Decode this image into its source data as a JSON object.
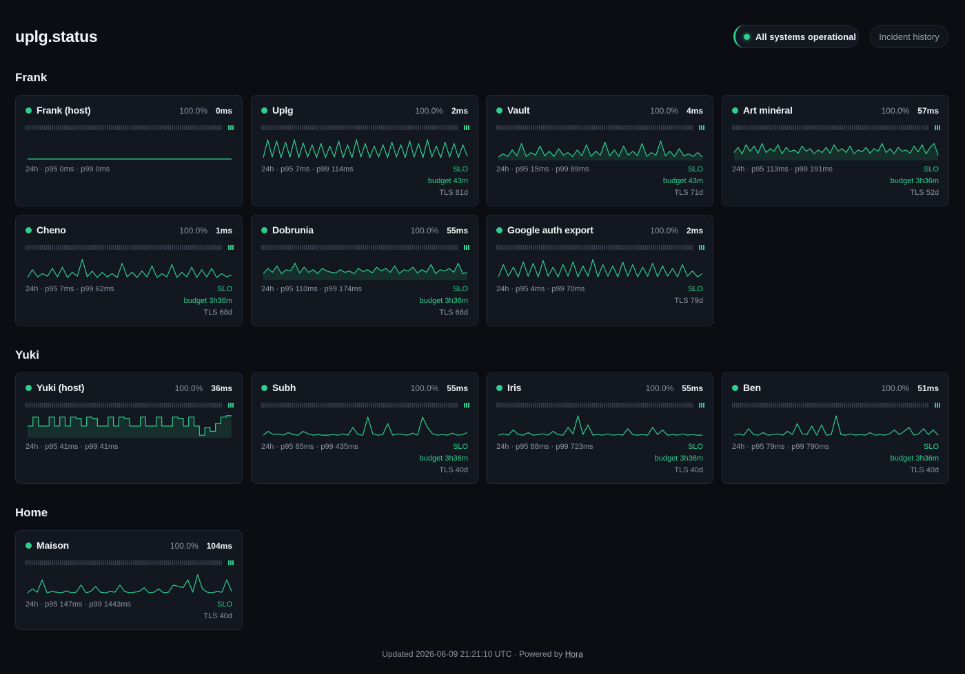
{
  "header": {
    "brand": "uplg.status",
    "status_label": "All systems operational",
    "history_label": "Incident history"
  },
  "colors": {
    "accent": "#2fcf8e",
    "background": "#0b0d12",
    "card": "#131720"
  },
  "sections": [
    {
      "title": "Frank",
      "monitors": [
        {
          "name": "Frank (host)",
          "uptime": "100.0%",
          "latency": "0ms",
          "stats": "24h · p95 0ms · p99 0ms",
          "slo": "",
          "budget": "",
          "tls": "",
          "series": [
            0,
            0,
            0,
            0,
            0,
            0,
            0,
            0,
            0,
            0,
            0,
            0,
            0,
            0,
            0,
            0,
            0,
            0,
            0,
            0,
            0,
            0,
            0,
            0,
            0,
            0,
            0,
            0,
            0,
            0,
            0,
            0,
            0,
            0,
            0,
            0,
            0,
            0,
            0,
            0
          ],
          "fill": false
        },
        {
          "name": "Uplg",
          "uptime": "100.0%",
          "latency": "2ms",
          "stats": "24h · p95 7ms · p99 114ms",
          "slo": "SLO",
          "budget": "budget 43m",
          "tls": "TLS 81d",
          "series": [
            2,
            30,
            3,
            28,
            2,
            26,
            3,
            30,
            2,
            25,
            3,
            22,
            2,
            24,
            2,
            20,
            3,
            28,
            2,
            22,
            2,
            30,
            3,
            24,
            2,
            20,
            3,
            22,
            2,
            26,
            3,
            22,
            2,
            28,
            3,
            24,
            2,
            30,
            3,
            20,
            2,
            26,
            3,
            24,
            2,
            22,
            4
          ],
          "fill": false
        },
        {
          "name": "Vault",
          "uptime": "100.0%",
          "latency": "4ms",
          "stats": "24h · p95 15ms · p99 89ms",
          "slo": "SLO",
          "budget": "budget 43m",
          "tls": "TLS 71d",
          "series": [
            3,
            8,
            4,
            14,
            5,
            24,
            4,
            10,
            6,
            20,
            5,
            12,
            4,
            16,
            6,
            10,
            4,
            14,
            5,
            22,
            4,
            12,
            6,
            26,
            5,
            14,
            4,
            20,
            6,
            12,
            5,
            24,
            4,
            10,
            6,
            28,
            5,
            12,
            4,
            16,
            5,
            8,
            4,
            10,
            3
          ],
          "fill": true
        },
        {
          "name": "Art minéral",
          "uptime": "100.0%",
          "latency": "57ms",
          "stats": "24h · p95 113ms · p99 191ms",
          "slo": "SLO",
          "budget": "budget 3h36m",
          "tls": "TLS 52d",
          "series": [
            10,
            18,
            8,
            22,
            12,
            20,
            9,
            24,
            10,
            16,
            12,
            22,
            8,
            18,
            11,
            14,
            9,
            20,
            12,
            16,
            8,
            14,
            10,
            18,
            9,
            22,
            12,
            16,
            10,
            20,
            8,
            14,
            11,
            18,
            9,
            16,
            12,
            24,
            10,
            16,
            8,
            18,
            12,
            14,
            9,
            20,
            11,
            22,
            8,
            18,
            24,
            6
          ],
          "fill": true
        }
      ]
    },
    {
      "title": "",
      "monitors": [
        {
          "name": "Cheno",
          "uptime": "100.0%",
          "latency": "1ms",
          "stats": "24h · p95 7ms · p99 62ms",
          "slo": "SLO",
          "budget": "budget 3h36m",
          "tls": "TLS 68d",
          "series": [
            2,
            14,
            3,
            8,
            4,
            16,
            3,
            18,
            2,
            10,
            4,
            30,
            3,
            12,
            2,
            10,
            3,
            8,
            2,
            24,
            3,
            10,
            2,
            12,
            3,
            20,
            2,
            8,
            3,
            22,
            2,
            10,
            3,
            18,
            2,
            14,
            3,
            16,
            2,
            8,
            3,
            6
          ],
          "fill": false
        },
        {
          "name": "Dobrunia",
          "uptime": "100.0%",
          "latency": "55ms",
          "stats": "24h · p95 110ms · p99 174ms",
          "slo": "SLO",
          "budget": "budget 3h36m",
          "tls": "TLS 68d",
          "series": [
            8,
            16,
            10,
            20,
            8,
            14,
            12,
            24,
            9,
            18,
            10,
            14,
            8,
            16,
            12,
            10,
            9,
            14,
            10,
            12,
            8,
            16,
            11,
            14,
            9,
            18,
            12,
            16,
            10,
            20,
            8,
            14,
            12,
            18,
            9,
            14,
            10,
            22,
            8,
            14,
            12,
            16,
            10,
            24,
            8,
            10
          ],
          "fill": true
        },
        {
          "name": "Google auth export",
          "uptime": "100.0%",
          "latency": "2ms",
          "stats": "24h · p95 4ms · p99 70ms",
          "slo": "SLO",
          "budget": "",
          "tls": "TLS 79d",
          "series": [
            3,
            22,
            4,
            18,
            3,
            26,
            4,
            24,
            3,
            28,
            4,
            18,
            3,
            22,
            4,
            26,
            3,
            20,
            4,
            30,
            3,
            22,
            4,
            20,
            3,
            26,
            4,
            22,
            3,
            18,
            4,
            24,
            3,
            20,
            4,
            16,
            3,
            22,
            4,
            12,
            3,
            8
          ],
          "fill": false
        }
      ]
    },
    {
      "title": "Yuki",
      "monitors": [
        {
          "name": "Yuki (host)",
          "uptime": "100.0%",
          "latency": "36ms",
          "stats": "24h · p95 41ms · p99 41ms",
          "slo": "",
          "budget": "",
          "tls": "",
          "series": [
            16,
            30,
            16,
            16,
            30,
            16,
            30,
            16,
            30,
            28,
            16,
            30,
            28,
            16,
            16,
            30,
            16,
            30,
            28,
            16,
            16,
            30,
            16,
            16,
            30,
            16,
            16,
            30,
            28,
            16,
            30,
            16,
            2,
            14,
            8,
            20,
            30,
            32
          ],
          "fill": true,
          "square": true
        },
        {
          "name": "Subh",
          "uptime": "100.0%",
          "latency": "55ms",
          "stats": "24h · p95 85ms · p99 435ms",
          "slo": "SLO",
          "budget": "budget 3h36m",
          "tls": "TLS 40d",
          "series": [
            2,
            8,
            3,
            4,
            2,
            6,
            3,
            2,
            8,
            4,
            2,
            3,
            2,
            2,
            3,
            2,
            4,
            2,
            14,
            3,
            2,
            30,
            4,
            2,
            3,
            20,
            2,
            4,
            3,
            2,
            5,
            2,
            30,
            14,
            4,
            2,
            3,
            2,
            5,
            2,
            3,
            6
          ],
          "fill": false
        },
        {
          "name": "Iris",
          "uptime": "100.0%",
          "latency": "55ms",
          "stats": "24h · p95 88ms · p99 723ms",
          "slo": "SLO",
          "budget": "budget 3h36m",
          "tls": "TLS 40d",
          "series": [
            2,
            4,
            2,
            10,
            3,
            2,
            6,
            2,
            3,
            4,
            2,
            8,
            3,
            2,
            14,
            4,
            32,
            3,
            18,
            2,
            3,
            2,
            4,
            2,
            3,
            2,
            12,
            3,
            2,
            3,
            2,
            14,
            3,
            10,
            2,
            3,
            2,
            4,
            2,
            3,
            2,
            2
          ],
          "fill": false
        },
        {
          "name": "Ben",
          "uptime": "100.0%",
          "latency": "51ms",
          "stats": "24h · p95 79ms · p99 790ms",
          "slo": "SLO",
          "budget": "budget 3h36m",
          "tls": "TLS 40d",
          "series": [
            2,
            4,
            2,
            12,
            3,
            2,
            6,
            2,
            3,
            4,
            2,
            8,
            3,
            20,
            4,
            3,
            16,
            2,
            18,
            2,
            3,
            32,
            3,
            2,
            4,
            2,
            3,
            2,
            6,
            2,
            3,
            2,
            4,
            10,
            3,
            8,
            14,
            2,
            4,
            12,
            3,
            10,
            2
          ],
          "fill": false
        }
      ]
    },
    {
      "title": "Home",
      "monitors": [
        {
          "name": "Maison",
          "uptime": "100.0%",
          "latency": "104ms",
          "stats": "24h · p95 147ms · p99 1443ms",
          "slo": "SLO",
          "budget": "",
          "tls": "TLS 40d",
          "series": [
            2,
            8,
            3,
            22,
            2,
            4,
            3,
            2,
            5,
            2,
            3,
            14,
            2,
            4,
            12,
            3,
            2,
            4,
            3,
            14,
            4,
            2,
            3,
            4,
            10,
            2,
            3,
            8,
            2,
            3,
            14,
            12,
            10,
            22,
            3,
            30,
            8,
            3,
            2,
            4,
            3,
            22,
            4
          ],
          "fill": false
        }
      ]
    }
  ],
  "footer": {
    "prefix": "Updated 2026-06-09 21:21:10 UTC · Powered by ",
    "link": "Hora"
  }
}
